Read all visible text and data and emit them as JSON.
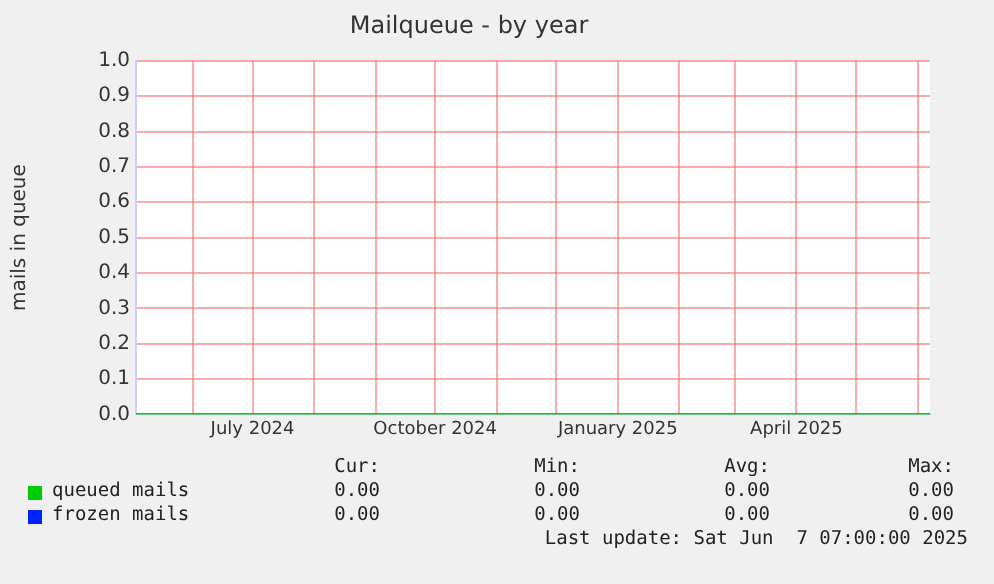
{
  "chart_data": {
    "type": "line",
    "title": "Mailqueue - by year",
    "ylabel": "mails in queue",
    "xlim": [
      "2024-05-03T07:00",
      "2025-06-07T07:00"
    ],
    "xticks": [
      {
        "value": "2024-06-01",
        "label": null
      },
      {
        "value": "2024-07-01",
        "label": "July 2024"
      },
      {
        "value": "2024-08-01",
        "label": null
      },
      {
        "value": "2024-09-01",
        "label": null
      },
      {
        "value": "2024-10-01",
        "label": "October 2024"
      },
      {
        "value": "2024-11-01",
        "label": null
      },
      {
        "value": "2024-12-01",
        "label": null
      },
      {
        "value": "2025-01-01",
        "label": "January 2025"
      },
      {
        "value": "2025-02-01",
        "label": null
      },
      {
        "value": "2025-03-01",
        "label": null
      },
      {
        "value": "2025-04-01",
        "label": "April 2025"
      },
      {
        "value": "2025-05-01",
        "label": null
      },
      {
        "value": "2025-06-01",
        "label": null
      }
    ],
    "ylim": [
      0,
      1
    ],
    "yticks": [
      {
        "value": 0,
        "label": "0.0"
      },
      {
        "value": 0.1,
        "label": "0.1"
      },
      {
        "value": 0.2,
        "label": "0.2"
      },
      {
        "value": 0.3,
        "label": "0.3"
      },
      {
        "value": 0.4,
        "label": "0.4"
      },
      {
        "value": 0.5,
        "label": "0.5"
      },
      {
        "value": 0.6,
        "label": "0.6"
      },
      {
        "value": 0.7,
        "label": "0.7"
      },
      {
        "value": 0.8,
        "label": "0.8"
      },
      {
        "value": 0.9,
        "label": "0.9"
      },
      {
        "value": 1,
        "label": "1.0"
      }
    ],
    "x": [
      "2024-05-03T07:00",
      "2025-06-07T07:00"
    ],
    "series": [
      {
        "name": "queued mails",
        "color": "#00cc00",
        "values": [
          0,
          0
        ]
      },
      {
        "name": "frozen mails",
        "color": "#0022ff",
        "values": [
          null,
          null
        ]
      }
    ],
    "grid": true,
    "legend": "bottom",
    "marker": "none",
    "annotations": [
      "Cur:",
      "Min:",
      "Avg:",
      "Max:",
      "0.00",
      "0.00",
      "0.00",
      "0.00",
      "0.00",
      "0.00",
      "0.00",
      "0.00",
      "Last update: Sat Jun  7 07:00:00 2025"
    ]
  }
}
